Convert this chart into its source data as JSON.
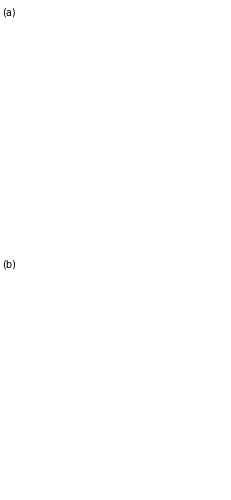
{
  "panel_a_label": "(a)",
  "panel_b_label": "(b)",
  "label_fontsize": 7,
  "fig_width": 2.32,
  "fig_height": 5.0,
  "dpi": 100,
  "bg_color": "#ffffff",
  "extent": [
    6.4,
    19.2,
    36.0,
    47.8
  ],
  "sea_color": "#ffffff",
  "rail_color": "#111111",
  "rail_linewidth": 0.5,
  "border_color": "#222222",
  "border_linewidth": 0.6,
  "topo_colors": {
    "sea": "#ffffff",
    "low": "#b8d080",
    "mid_low": "#d4c078",
    "mid": "#c8a848",
    "high": "#b08838",
    "very_high": "#986828"
  }
}
